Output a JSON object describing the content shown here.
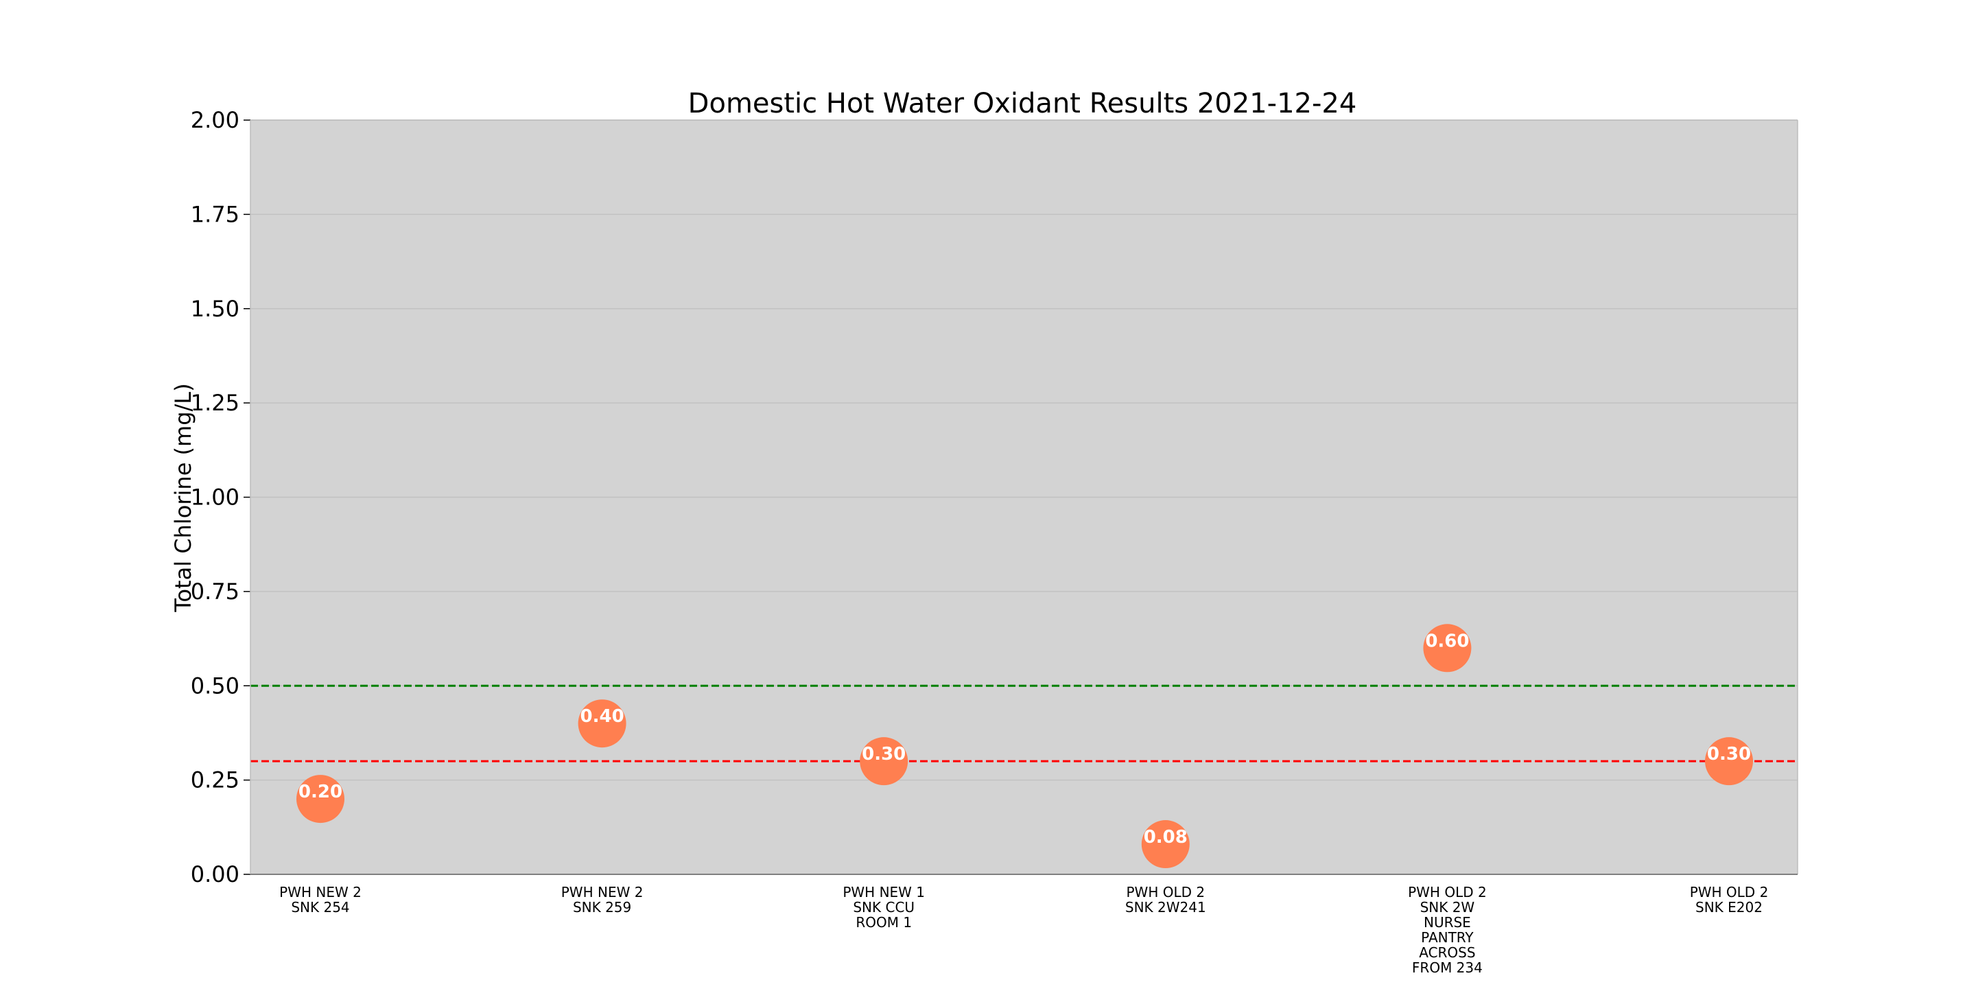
{
  "chart_data": {
    "type": "scatter",
    "title": "Domestic Hot Water Oxidant Results 2021-12-24",
    "xlabel": "",
    "ylabel": "Total Chlorine (mg/L)",
    "ylim": [
      0,
      2
    ],
    "yticks": [
      0.0,
      0.25,
      0.5,
      0.75,
      1.0,
      1.25,
      1.5,
      1.75,
      2.0
    ],
    "ytick_labels": [
      "0.00",
      "0.25",
      "0.50",
      "0.75",
      "1.00",
      "1.25",
      "1.50",
      "1.75",
      "2.00"
    ],
    "grid": true,
    "categories": [
      [
        "PWH NEW 2",
        "SNK 254"
      ],
      [
        "PWH NEW 2",
        "SNK 259"
      ],
      [
        "PWH NEW 1",
        "SNK CCU",
        "ROOM 1"
      ],
      [
        "PWH OLD 2",
        "SNK 2W241"
      ],
      [
        "PWH OLD 2",
        "SNK 2W",
        "NURSE",
        "PANTRY",
        "ACROSS",
        "FROM 234"
      ],
      [
        "PWH OLD 2",
        "SNK E202"
      ]
    ],
    "values": [
      0.2,
      0.4,
      0.3,
      0.08,
      0.6,
      0.3
    ],
    "data_labels": [
      "0.20",
      "0.40",
      "0.30",
      "0.08",
      "0.60",
      "0.30"
    ],
    "reference_lines": [
      {
        "y": 0.5,
        "color": "#008000",
        "style": "dashed"
      },
      {
        "y": 0.3,
        "color": "#ff0000",
        "style": "dashed"
      }
    ],
    "colors": {
      "plot_background": "#d3d3d3",
      "gridline": "#c2c2c2",
      "marker": "#ff7f50",
      "data_label": "#ffffff",
      "text": "#000000"
    }
  }
}
